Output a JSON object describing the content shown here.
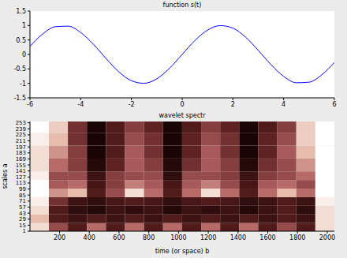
{
  "chart_data": [
    {
      "type": "line",
      "title": "function s(t)",
      "x": [
        -6,
        -5.5,
        -5,
        -4.5,
        -4,
        -3.5,
        -3,
        -2.5,
        -2,
        -1.5,
        -1,
        -0.5,
        0,
        0.5,
        1,
        1.5,
        2,
        2.5,
        3,
        3.5,
        4,
        4.5,
        5,
        5.5,
        6
      ],
      "values": [
        0.279,
        0.706,
        0.959,
        0.978,
        0.757,
        0.351,
        -0.141,
        -0.598,
        -0.909,
        -0.997,
        -0.841,
        -0.479,
        0,
        0.479,
        0.841,
        0.997,
        0.909,
        0.598,
        0.141,
        -0.351,
        -0.757,
        -0.978,
        -0.959,
        -0.706,
        -0.279
      ],
      "color": "#0000ff",
      "xlim": [
        -6,
        6
      ],
      "xticks": [
        -6,
        -4,
        -2,
        0,
        2,
        4,
        6
      ],
      "ylim": [
        -1.5,
        1.5
      ],
      "yticks": [
        -1.5,
        -1,
        -0.5,
        0,
        0.5,
        1,
        1.5
      ],
      "grid": false
    },
    {
      "type": "heatmap",
      "title": "wavelet spectr",
      "x_label": "time (or space) b",
      "y_label": "scales a",
      "x_edges": [
        1,
        128,
        256,
        384,
        512,
        640,
        768,
        896,
        1024,
        1152,
        1280,
        1408,
        1536,
        1664,
        1792,
        1920,
        2048
      ],
      "y_edges": [
        1,
        20,
        40,
        60,
        80,
        100,
        120,
        140,
        170,
        200,
        230,
        256
      ],
      "z": [
        [
          0.9,
          0.5,
          0.3,
          0.6,
          0.3,
          0.6,
          0.3,
          0.6,
          0.3,
          0.6,
          0.3,
          0.6,
          0.3,
          0.5,
          0.3,
          0.9
        ],
        [
          0.8,
          0.3,
          0.2,
          0.3,
          0.2,
          0.3,
          0.2,
          0.3,
          0.2,
          0.3,
          0.2,
          0.3,
          0.2,
          0.3,
          0.2,
          0.9
        ],
        [
          0.9,
          0.3,
          0.15,
          0.1,
          0.2,
          0.15,
          0.2,
          0.1,
          0.2,
          0.15,
          0.2,
          0.1,
          0.2,
          0.3,
          0.15,
          0.9
        ],
        [
          0.95,
          0.4,
          0.2,
          0.15,
          0.25,
          0.3,
          0.25,
          0.15,
          0.25,
          0.3,
          0.25,
          0.15,
          0.2,
          0.3,
          0.2,
          0.95
        ],
        [
          1,
          0.7,
          0.8,
          0.3,
          0.5,
          0.9,
          0.6,
          0.3,
          0.6,
          0.9,
          0.6,
          0.3,
          0.6,
          0.8,
          0.6,
          1
        ],
        [
          1,
          0.55,
          0.6,
          0.25,
          0.45,
          0.65,
          0.55,
          0.25,
          0.55,
          0.65,
          0.5,
          0.25,
          0.55,
          0.6,
          0.5,
          1
        ],
        [
          0.95,
          0.5,
          0.5,
          0.2,
          0.45,
          0.5,
          0.5,
          0.15,
          0.5,
          0.5,
          0.45,
          0.2,
          0.45,
          0.5,
          0.6,
          1
        ],
        [
          0.9,
          0.6,
          0.45,
          0.1,
          0.35,
          0.55,
          0.45,
          0.1,
          0.4,
          0.55,
          0.45,
          0.1,
          0.4,
          0.5,
          0.7,
          1
        ],
        [
          0.9,
          0.7,
          0.45,
          0.05,
          0.3,
          0.55,
          0.4,
          0.05,
          0.35,
          0.55,
          0.4,
          0.05,
          0.35,
          0.55,
          0.8,
          1
        ],
        [
          0.95,
          0.8,
          0.4,
          0.05,
          0.3,
          0.5,
          0.4,
          0.05,
          0.35,
          0.5,
          0.4,
          0.05,
          0.35,
          0.5,
          0.85,
          1
        ],
        [
          1,
          0.85,
          0.4,
          0.05,
          0.3,
          0.45,
          0.35,
          0.05,
          0.3,
          0.45,
          0.35,
          0.05,
          0.3,
          0.45,
          0.85,
          1
        ]
      ],
      "xlim": [
        1,
        2048
      ],
      "xticks": [
        200,
        400,
        600,
        800,
        1000,
        1200,
        1400,
        1600,
        1800,
        2000
      ],
      "ylim": [
        1,
        256
      ],
      "yticks": [
        1,
        15,
        29,
        43,
        57,
        71,
        85,
        99,
        113,
        127,
        141,
        155,
        169,
        183,
        197,
        211,
        225,
        239,
        253
      ]
    }
  ]
}
